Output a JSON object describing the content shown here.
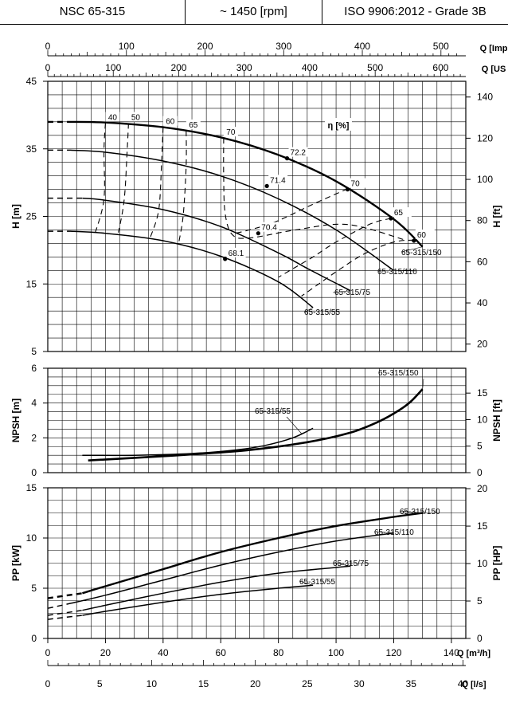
{
  "header": {
    "model": "NSC 65-315",
    "speed": "~ 1450 [rpm]",
    "standard": "ISO 9906:2012 - Grade 3B"
  },
  "chart_data": [
    {
      "type": "line",
      "name": "head-curves",
      "ylabel_left": "H [m]",
      "ylabel_right": "H [ft]",
      "xlabel_top_1": "Q [Imp gpm]",
      "xlabel_top_2": "Q [US gpm]",
      "xlim": [
        0,
        145
      ],
      "ylim": [
        5,
        45
      ],
      "grid": true,
      "imp_ticks": [
        "0",
        "100",
        "200",
        "300",
        "400",
        "500"
      ],
      "us_ticks": [
        "0",
        "100",
        "200",
        "300",
        "400",
        "500",
        "600"
      ],
      "y_ticks_left": [
        "5",
        "15",
        "25",
        "35",
        "45"
      ],
      "y_ticks_right": [
        "20",
        "40",
        "60",
        "80",
        "100",
        "120",
        "140"
      ],
      "series": [
        {
          "name": "65-315/150",
          "dashed_until": 8,
          "x": [
            0,
            8,
            20,
            40,
            60,
            80,
            100,
            120,
            130
          ],
          "y": [
            39,
            39,
            38.9,
            38.2,
            36.7,
            34.1,
            30.2,
            24.6,
            20.5
          ]
        },
        {
          "name": "65-315/110",
          "dashed_until": 8,
          "x": [
            0,
            8,
            20,
            40,
            60,
            80,
            100,
            120
          ],
          "y": [
            34.8,
            34.8,
            34.5,
            33.2,
            31.0,
            27.6,
            23.0,
            17.0
          ]
        },
        {
          "name": "65-315/75",
          "dashed_until": 12,
          "x": [
            0,
            12,
            20,
            40,
            60,
            80,
            90,
            105
          ],
          "y": [
            27.7,
            27.7,
            27.4,
            26.0,
            23.5,
            19.6,
            17.3,
            14.0
          ]
        },
        {
          "name": "65-315/55",
          "dashed_until": 8,
          "x": [
            0,
            8,
            20,
            40,
            60,
            80,
            92
          ],
          "y": [
            22.8,
            22.8,
            22.5,
            21.4,
            19.1,
            15.3,
            11.5
          ]
        }
      ],
      "efficiency_label": "η [%]",
      "efficiency_contours": [
        {
          "label": "40",
          "x": [
            20,
            19.5,
            19.5,
            16.5
          ],
          "y": [
            38.8,
            34.8,
            27.6,
            22.6
          ]
        },
        {
          "label": "50",
          "x": [
            28,
            27.5,
            26.5,
            24.5
          ],
          "y": [
            38.8,
            34.5,
            27.4,
            22.6
          ]
        },
        {
          "label": "60",
          "x": [
            40,
            39.5,
            38.5,
            35.5
          ],
          "y": [
            38.2,
            33.2,
            26.0,
            21.8
          ]
        },
        {
          "label": "65",
          "x": [
            48,
            48,
            47,
            45.5
          ],
          "y": [
            37.7,
            32.5,
            25.3,
            21.2
          ]
        },
        {
          "label": "70",
          "x": [
            61,
            61,
            61.5,
            64,
            70,
            86,
            104,
            124
          ],
          "y": [
            36.6,
            31.0,
            25.5,
            22.3,
            21.8,
            23.0,
            23.8,
            21.5
          ]
        },
        {
          "label": "70",
          "x": [
            104,
            92,
            79,
            70,
            64
          ],
          "y": [
            29.1,
            26.8,
            24.2,
            23.0,
            22.4
          ]
        },
        {
          "label": "65",
          "x": [
            119,
            112,
            100,
            92,
            86,
            80
          ],
          "y": [
            24.7,
            23.9,
            21.2,
            19.0,
            17.5,
            16.0
          ]
        },
        {
          "label": "60",
          "x": [
            127,
            120,
            110,
            100,
            94,
            88
          ],
          "y": [
            21.5,
            21.2,
            19.5,
            16.8,
            15.0,
            13.2
          ]
        }
      ],
      "points": [
        {
          "label": "72.2",
          "x": 83,
          "y": 33.6
        },
        {
          "label": "71.4",
          "x": 76,
          "y": 29.5
        },
        {
          "label": "70",
          "x": 104,
          "y": 29.0
        },
        {
          "label": "65",
          "x": 119,
          "y": 24.7
        },
        {
          "label": "60",
          "x": 127,
          "y": 21.4
        },
        {
          "label": "70.4",
          "x": 73,
          "y": 22.5
        },
        {
          "label": "68.1",
          "x": 61.5,
          "y": 18.7
        }
      ]
    },
    {
      "type": "line",
      "name": "npsh-curves",
      "ylabel_left": "NPSH [m]",
      "ylabel_right": "NPSH [ft]",
      "xlim": [
        0,
        145
      ],
      "ylim": [
        0,
        6
      ],
      "grid": true,
      "y_ticks_left": [
        "0",
        "2",
        "4",
        "6"
      ],
      "y_ticks_right": [
        "0",
        "5",
        "10",
        "15"
      ],
      "series": [
        {
          "name": "65-315/150",
          "x": [
            14,
            30,
            50,
            70,
            90,
            105,
            115,
            122,
            126,
            130
          ],
          "y": [
            0.7,
            0.85,
            1.05,
            1.3,
            1.75,
            2.3,
            2.95,
            3.6,
            4.1,
            4.8
          ]
        },
        {
          "name": "65-315/55",
          "x": [
            12,
            30,
            50,
            65,
            75,
            85,
            92
          ],
          "y": [
            1.0,
            1.0,
            1.1,
            1.3,
            1.55,
            2.0,
            2.55
          ]
        }
      ]
    },
    {
      "type": "line",
      "name": "power-curves",
      "ylabel_left": "PP [kW]",
      "ylabel_right": "PP [HP]",
      "xlabel": "Q [m³/h]",
      "xlabel_ls": "Q [l/s]",
      "xlim": [
        0,
        145
      ],
      "ylim": [
        0,
        15
      ],
      "grid": true,
      "x_ticks": [
        "0",
        "20",
        "40",
        "60",
        "80",
        "100",
        "120",
        "140"
      ],
      "ls_ticks": [
        "0",
        "5",
        "10",
        "15",
        "20",
        "25",
        "30",
        "35",
        "40"
      ],
      "y_ticks_left": [
        "0",
        "5",
        "10",
        "15"
      ],
      "y_ticks_right": [
        "0",
        "5",
        "10",
        "15",
        "20"
      ],
      "series": [
        {
          "name": "65-315/150",
          "dashed_until": 12,
          "x": [
            0,
            12,
            20,
            40,
            60,
            80,
            100,
            120,
            130
          ],
          "y": [
            4.0,
            4.5,
            5.2,
            6.9,
            8.6,
            10.0,
            11.2,
            12.1,
            12.5
          ]
        },
        {
          "name": "65-315/110",
          "dashed_until": 8,
          "x": [
            0,
            8,
            20,
            40,
            60,
            80,
            100,
            120
          ],
          "y": [
            3.0,
            3.5,
            4.3,
            5.8,
            7.3,
            8.6,
            9.7,
            10.5
          ]
        },
        {
          "name": "65-315/75",
          "dashed_until": 12,
          "x": [
            0,
            12,
            20,
            40,
            60,
            80,
            105
          ],
          "y": [
            2.3,
            2.8,
            3.3,
            4.5,
            5.6,
            6.5,
            7.2
          ]
        },
        {
          "name": "65-315/55",
          "dashed_until": 12,
          "x": [
            0,
            12,
            20,
            40,
            60,
            80,
            92
          ],
          "y": [
            1.9,
            2.3,
            2.7,
            3.6,
            4.4,
            5.0,
            5.3
          ]
        }
      ]
    }
  ]
}
